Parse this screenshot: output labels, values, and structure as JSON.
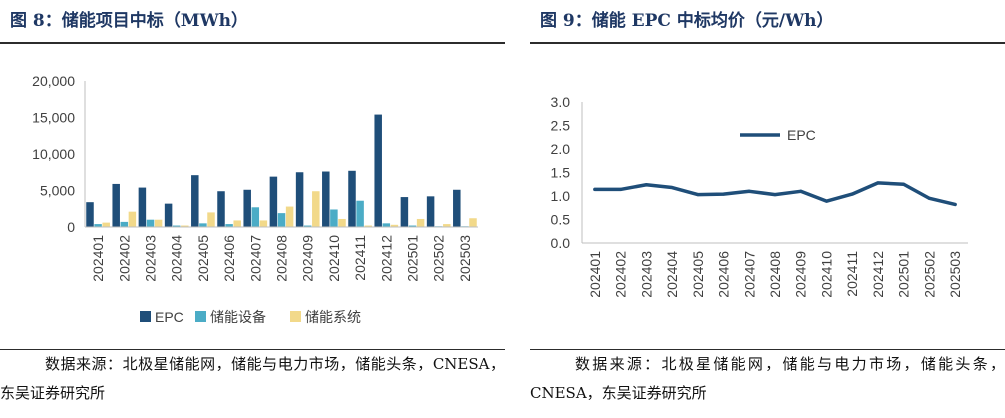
{
  "left": {
    "title": "图 8：储能项目中标（MWh）",
    "source": "数据来源：北极星储能网，储能与电力市场，储能头条，CNESA，东吴证券研究所"
  },
  "right": {
    "title": "图 9：储能 EPC 中标均价（元/Wh）",
    "source": "数据来源：北极星储能网，储能与电力市场，储能头条，CNESA，东吴证券研究所"
  },
  "chart_data": [
    {
      "type": "bar",
      "categories": [
        "202401",
        "202402",
        "202403",
        "202404",
        "202405",
        "202406",
        "202407",
        "202408",
        "202409",
        "202410",
        "202411",
        "202412",
        "202501",
        "202502",
        "202503"
      ],
      "series": [
        {
          "name": "EPC",
          "color": "#1f4e79",
          "values": [
            3400,
            5900,
            5400,
            3200,
            7100,
            4900,
            5100,
            6900,
            7500,
            7600,
            7700,
            15400,
            4100,
            4200,
            5100
          ]
        },
        {
          "name": "储能设备",
          "color": "#4bacc6",
          "values": [
            400,
            700,
            1000,
            200,
            500,
            400,
            2700,
            1900,
            200,
            2400,
            3600,
            500,
            200,
            100,
            100
          ]
        },
        {
          "name": "储能系统",
          "color": "#f2d98a",
          "values": [
            600,
            2100,
            1000,
            200,
            2000,
            900,
            900,
            2800,
            4900,
            1100,
            200,
            300,
            1100,
            400,
            1200
          ]
        }
      ],
      "y_ticks": [
        "0",
        "5,000",
        "10,000",
        "15,000",
        "20,000"
      ],
      "ylim": [
        0,
        20000
      ],
      "legend_position": "bottom"
    },
    {
      "type": "line",
      "categories": [
        "202401",
        "202402",
        "202403",
        "202404",
        "202405",
        "202406",
        "202407",
        "202408",
        "202409",
        "202410",
        "202411",
        "202412",
        "202501",
        "202502",
        "202503"
      ],
      "series": [
        {
          "name": "EPC",
          "color": "#1f4e79",
          "values": [
            1.14,
            1.14,
            1.24,
            1.18,
            1.03,
            1.04,
            1.1,
            1.03,
            1.1,
            0.89,
            1.04,
            1.28,
            1.25,
            0.95,
            0.82
          ]
        }
      ],
      "y_ticks": [
        "0.0",
        "0.5",
        "1.0",
        "1.5",
        "2.0",
        "2.5",
        "3.0"
      ],
      "ylim": [
        0,
        3.0
      ],
      "legend_position": "top-left"
    }
  ]
}
